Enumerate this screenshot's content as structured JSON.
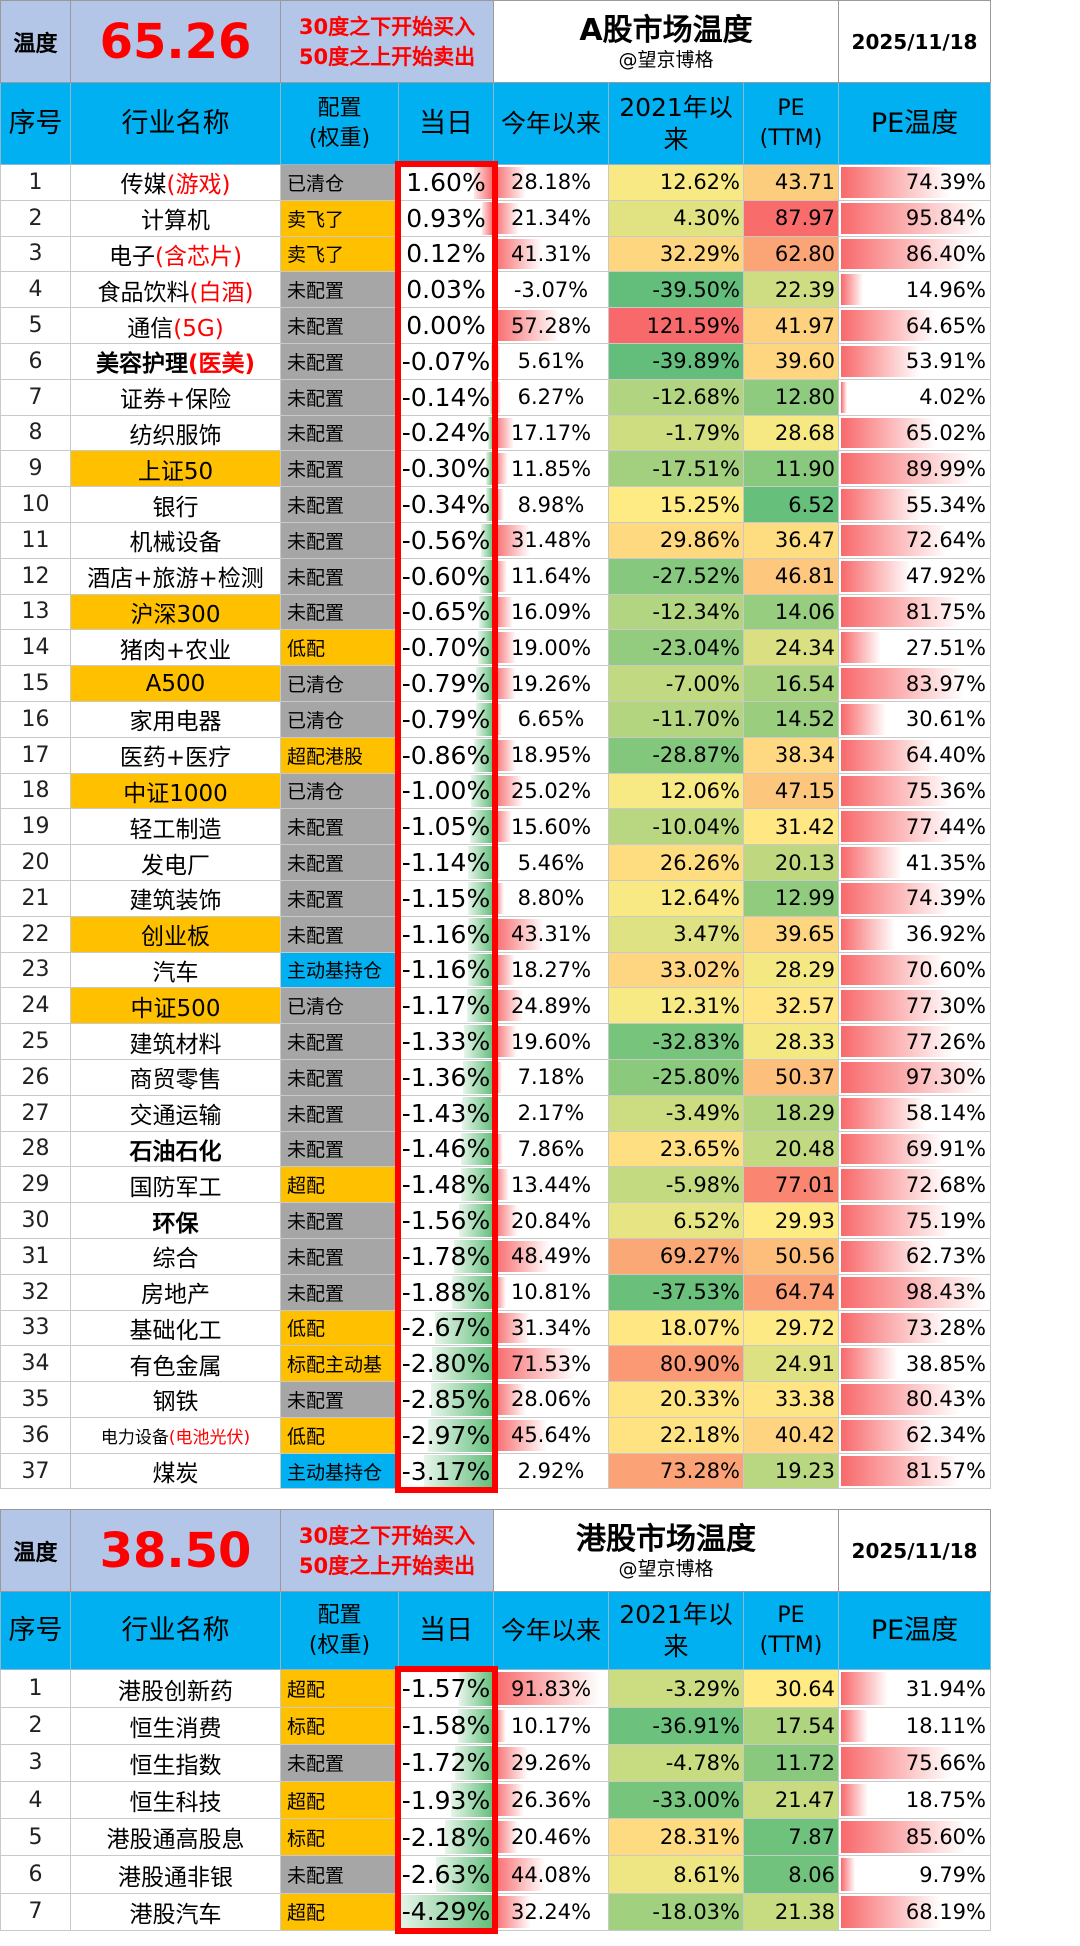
{
  "a_share": {
    "temp_label": "温度",
    "temperature": "65.26",
    "rule_line1": "30度之下开始买入",
    "rule_line2": "50度之上开始卖出",
    "title": "A股市场温度",
    "author": "@望京博格",
    "date": "2025/11/18",
    "headers": {
      "seq": "序号",
      "name": "行业名称",
      "config": "配置\n(权重)",
      "today": "当日",
      "ytd": "今年以来",
      "since2021": "2021年以来",
      "pe": "PE\n(TTM)",
      "pe_temp": "PE温度"
    },
    "rows": [
      {
        "seq": "1",
        "name": "传媒",
        "name_red": "(游戏)",
        "config": "已清仓",
        "cfg_color": "gray",
        "today": "1.60%",
        "ytd": "28.18%",
        "since2021": "12.62%",
        "pe": "43.71",
        "pe_temp": "74.39%"
      },
      {
        "seq": "2",
        "name": "计算机",
        "name_red": "",
        "config": "卖飞了",
        "cfg_color": "yellow",
        "today": "0.93%",
        "ytd": "21.34%",
        "since2021": "4.30%",
        "pe": "87.97",
        "pe_temp": "95.84%"
      },
      {
        "seq": "3",
        "name": "电子",
        "name_red": "(含芯片)",
        "config": "卖飞了",
        "cfg_color": "yellow",
        "today": "0.12%",
        "ytd": "41.31%",
        "since2021": "32.29%",
        "pe": "62.80",
        "pe_temp": "86.40%"
      },
      {
        "seq": "4",
        "name": "食品饮料",
        "name_red": "(白酒)",
        "config": "未配置",
        "cfg_color": "gray",
        "today": "0.03%",
        "ytd": "-3.07%",
        "since2021": "-39.50%",
        "pe": "22.39",
        "pe_temp": "14.96%"
      },
      {
        "seq": "5",
        "name": "通信",
        "name_red": "(5G)",
        "config": "未配置",
        "cfg_color": "gray",
        "today": "0.00%",
        "ytd": "57.28%",
        "since2021": "121.59%",
        "pe": "41.97",
        "pe_temp": "64.65%"
      },
      {
        "seq": "6",
        "name": "美容护理",
        "name_red": "(医美)",
        "config": "未配置",
        "cfg_color": "gray",
        "today": "-0.07%",
        "ytd": "5.61%",
        "since2021": "-39.89%",
        "pe": "39.60",
        "pe_temp": "53.91%",
        "bold": true
      },
      {
        "seq": "7",
        "name": "证券+保险",
        "name_red": "",
        "config": "未配置",
        "cfg_color": "gray",
        "today": "-0.14%",
        "ytd": "6.27%",
        "since2021": "-12.68%",
        "pe": "12.80",
        "pe_temp": "4.02%"
      },
      {
        "seq": "8",
        "name": "纺织服饰",
        "name_red": "",
        "config": "未配置",
        "cfg_color": "gray",
        "today": "-0.24%",
        "ytd": "17.17%",
        "since2021": "-1.79%",
        "pe": "28.68",
        "pe_temp": "65.02%"
      },
      {
        "seq": "9",
        "name": "上证50",
        "name_red": "",
        "config": "未配置",
        "cfg_color": "gray",
        "today": "-0.30%",
        "ytd": "11.85%",
        "since2021": "-17.51%",
        "pe": "11.90",
        "pe_temp": "89.99%",
        "name_bg": true
      },
      {
        "seq": "10",
        "name": "银行",
        "name_red": "",
        "config": "未配置",
        "cfg_color": "gray",
        "today": "-0.34%",
        "ytd": "8.98%",
        "since2021": "15.25%",
        "pe": "6.52",
        "pe_temp": "55.34%"
      },
      {
        "seq": "11",
        "name": "机械设备",
        "name_red": "",
        "config": "未配置",
        "cfg_color": "gray",
        "today": "-0.56%",
        "ytd": "31.48%",
        "since2021": "29.86%",
        "pe": "36.47",
        "pe_temp": "72.64%"
      },
      {
        "seq": "12",
        "name": "酒店+旅游+检测",
        "name_red": "",
        "config": "未配置",
        "cfg_color": "gray",
        "today": "-0.60%",
        "ytd": "11.64%",
        "since2021": "-27.52%",
        "pe": "46.81",
        "pe_temp": "47.92%"
      },
      {
        "seq": "13",
        "name": "沪深300",
        "name_red": "",
        "config": "未配置",
        "cfg_color": "gray",
        "today": "-0.65%",
        "ytd": "16.09%",
        "since2021": "-12.34%",
        "pe": "14.06",
        "pe_temp": "81.75%",
        "name_bg": true
      },
      {
        "seq": "14",
        "name": "猪肉+农业",
        "name_red": "",
        "config": "低配",
        "cfg_color": "yellow",
        "today": "-0.70%",
        "ytd": "19.00%",
        "since2021": "-23.04%",
        "pe": "24.34",
        "pe_temp": "27.51%"
      },
      {
        "seq": "15",
        "name": "A500",
        "name_red": "",
        "config": "已清仓",
        "cfg_color": "gray",
        "today": "-0.79%",
        "ytd": "19.26%",
        "since2021": "-7.00%",
        "pe": "16.54",
        "pe_temp": "83.97%",
        "name_bg": true
      },
      {
        "seq": "16",
        "name": "家用电器",
        "name_red": "",
        "config": "已清仓",
        "cfg_color": "gray",
        "today": "-0.79%",
        "ytd": "6.65%",
        "since2021": "-11.70%",
        "pe": "14.52",
        "pe_temp": "30.61%"
      },
      {
        "seq": "17",
        "name": "医药+医疗",
        "name_red": "",
        "config": "超配港股",
        "cfg_color": "yellow",
        "today": "-0.86%",
        "ytd": "18.95%",
        "since2021": "-28.87%",
        "pe": "38.34",
        "pe_temp": "64.40%"
      },
      {
        "seq": "18",
        "name": "中证1000",
        "name_red": "",
        "config": "已清仓",
        "cfg_color": "gray",
        "today": "-1.00%",
        "ytd": "25.02%",
        "since2021": "12.06%",
        "pe": "47.15",
        "pe_temp": "75.36%",
        "name_bg": true
      },
      {
        "seq": "19",
        "name": "轻工制造",
        "name_red": "",
        "config": "未配置",
        "cfg_color": "gray",
        "today": "-1.05%",
        "ytd": "15.60%",
        "since2021": "-10.04%",
        "pe": "31.42",
        "pe_temp": "77.44%"
      },
      {
        "seq": "20",
        "name": "发电厂",
        "name_red": "",
        "config": "未配置",
        "cfg_color": "gray",
        "today": "-1.14%",
        "ytd": "5.46%",
        "since2021": "26.26%",
        "pe": "20.13",
        "pe_temp": "41.35%"
      },
      {
        "seq": "21",
        "name": "建筑装饰",
        "name_red": "",
        "config": "未配置",
        "cfg_color": "gray",
        "today": "-1.15%",
        "ytd": "8.80%",
        "since2021": "12.64%",
        "pe": "12.99",
        "pe_temp": "74.39%"
      },
      {
        "seq": "22",
        "name": "创业板",
        "name_red": "",
        "config": "未配置",
        "cfg_color": "gray",
        "today": "-1.16%",
        "ytd": "43.31%",
        "since2021": "3.47%",
        "pe": "39.65",
        "pe_temp": "36.92%",
        "name_bg": true
      },
      {
        "seq": "23",
        "name": "汽车",
        "name_red": "",
        "config": "主动基持仓",
        "cfg_color": "blue",
        "today": "-1.16%",
        "ytd": "18.27%",
        "since2021": "33.02%",
        "pe": "28.29",
        "pe_temp": "70.60%"
      },
      {
        "seq": "24",
        "name": "中证500",
        "name_red": "",
        "config": "已清仓",
        "cfg_color": "gray",
        "today": "-1.17%",
        "ytd": "24.89%",
        "since2021": "12.31%",
        "pe": "32.57",
        "pe_temp": "77.30%",
        "name_bg": true
      },
      {
        "seq": "25",
        "name": "建筑材料",
        "name_red": "",
        "config": "未配置",
        "cfg_color": "gray",
        "today": "-1.33%",
        "ytd": "19.60%",
        "since2021": "-32.83%",
        "pe": "28.33",
        "pe_temp": "77.26%"
      },
      {
        "seq": "26",
        "name": "商贸零售",
        "name_red": "",
        "config": "未配置",
        "cfg_color": "gray",
        "today": "-1.36%",
        "ytd": "7.18%",
        "since2021": "-25.80%",
        "pe": "50.37",
        "pe_temp": "97.30%"
      },
      {
        "seq": "27",
        "name": "交通运输",
        "name_red": "",
        "config": "未配置",
        "cfg_color": "gray",
        "today": "-1.43%",
        "ytd": "2.17%",
        "since2021": "-3.49%",
        "pe": "18.29",
        "pe_temp": "58.14%"
      },
      {
        "seq": "28",
        "name": "石油石化",
        "name_red": "",
        "config": "未配置",
        "cfg_color": "gray",
        "today": "-1.46%",
        "ytd": "7.86%",
        "since2021": "23.65%",
        "pe": "20.48",
        "pe_temp": "69.91%",
        "bold": true
      },
      {
        "seq": "29",
        "name": "国防军工",
        "name_red": "",
        "config": "超配",
        "cfg_color": "yellow",
        "today": "-1.48%",
        "ytd": "13.44%",
        "since2021": "-5.98%",
        "pe": "77.01",
        "pe_temp": "72.68%"
      },
      {
        "seq": "30",
        "name": "环保",
        "name_red": "",
        "config": "未配置",
        "cfg_color": "gray",
        "today": "-1.56%",
        "ytd": "20.84%",
        "since2021": "6.52%",
        "pe": "29.93",
        "pe_temp": "75.19%",
        "bold": true
      },
      {
        "seq": "31",
        "name": "综合",
        "name_red": "",
        "config": "未配置",
        "cfg_color": "gray",
        "today": "-1.78%",
        "ytd": "48.49%",
        "since2021": "69.27%",
        "pe": "50.56",
        "pe_temp": "62.73%"
      },
      {
        "seq": "32",
        "name": "房地产",
        "name_red": "",
        "config": "未配置",
        "cfg_color": "gray",
        "today": "-1.88%",
        "ytd": "10.81%",
        "since2021": "-37.53%",
        "pe": "64.74",
        "pe_temp": "98.43%"
      },
      {
        "seq": "33",
        "name": "基础化工",
        "name_red": "",
        "config": "低配",
        "cfg_color": "yellow",
        "today": "-2.67%",
        "ytd": "31.34%",
        "since2021": "18.07%",
        "pe": "29.72",
        "pe_temp": "73.28%"
      },
      {
        "seq": "34",
        "name": "有色金属",
        "name_red": "",
        "config": "标配主动基",
        "cfg_color": "yellow",
        "today": "-2.80%",
        "ytd": "71.53%",
        "since2021": "80.90%",
        "pe": "24.91",
        "pe_temp": "38.85%"
      },
      {
        "seq": "35",
        "name": "钢铁",
        "name_red": "",
        "config": "未配置",
        "cfg_color": "gray",
        "today": "-2.85%",
        "ytd": "28.06%",
        "since2021": "20.33%",
        "pe": "33.38",
        "pe_temp": "80.43%"
      },
      {
        "seq": "36",
        "name": "电力设备",
        "name_red": "(电池光伏)",
        "config": "低配",
        "cfg_color": "yellow",
        "today": "-2.97%",
        "ytd": "45.64%",
        "since2021": "22.18%",
        "pe": "40.42",
        "pe_temp": "62.34%",
        "small": true
      },
      {
        "seq": "37",
        "name": "煤炭",
        "name_red": "",
        "config": "主动基持仓",
        "cfg_color": "blue",
        "today": "-3.17%",
        "ytd": "2.92%",
        "since2021": "73.28%",
        "pe": "19.23",
        "pe_temp": "81.57%"
      }
    ]
  },
  "hk_share": {
    "temp_label": "温度",
    "temperature": "38.50",
    "rule_line1": "30度之下开始买入",
    "rule_line2": "50度之上开始卖出",
    "title": "港股市场温度",
    "author": "@望京博格",
    "date": "2025/11/18",
    "headers": {
      "seq": "序号",
      "name": "行业名称",
      "config": "配置\n(权重)",
      "today": "当日",
      "ytd": "今年以来",
      "since2021": "2021年以来",
      "pe": "PE\n(TTM)",
      "pe_temp": "PE温度"
    },
    "rows": [
      {
        "seq": "1",
        "name": "港股创新药",
        "name_red": "",
        "config": "超配",
        "cfg_color": "yellow",
        "today": "-1.57%",
        "ytd": "91.83%",
        "since2021": "-3.29%",
        "pe": "30.64",
        "pe_temp": "31.94%"
      },
      {
        "seq": "2",
        "name": "恒生消费",
        "name_red": "",
        "config": "标配",
        "cfg_color": "yellow",
        "today": "-1.58%",
        "ytd": "10.17%",
        "since2021": "-36.91%",
        "pe": "17.54",
        "pe_temp": "18.11%"
      },
      {
        "seq": "3",
        "name": "恒生指数",
        "name_red": "",
        "config": "未配置",
        "cfg_color": "gray",
        "today": "-1.72%",
        "ytd": "29.26%",
        "since2021": "-4.78%",
        "pe": "11.72",
        "pe_temp": "75.66%"
      },
      {
        "seq": "4",
        "name": "恒生科技",
        "name_red": "",
        "config": "超配",
        "cfg_color": "yellow",
        "today": "-1.93%",
        "ytd": "26.36%",
        "since2021": "-33.00%",
        "pe": "21.47",
        "pe_temp": "18.75%"
      },
      {
        "seq": "5",
        "name": "港股通高股息",
        "name_red": "",
        "config": "标配",
        "cfg_color": "yellow",
        "today": "-2.18%",
        "ytd": "20.46%",
        "since2021": "28.31%",
        "pe": "7.87",
        "pe_temp": "85.60%"
      },
      {
        "seq": "6",
        "name": "港股通非银",
        "name_red": "",
        "config": "未配置",
        "cfg_color": "gray",
        "today": "-2.63%",
        "ytd": "44.08%",
        "since2021": "8.61%",
        "pe": "8.06",
        "pe_temp": "9.79%"
      },
      {
        "seq": "7",
        "name": "港股汽车",
        "name_red": "",
        "config": "超配",
        "cfg_color": "yellow",
        "today": "-4.29%",
        "ytd": "32.24%",
        "since2021": "-18.03%",
        "pe": "21.38",
        "pe_temp": "68.19%"
      }
    ]
  }
}
